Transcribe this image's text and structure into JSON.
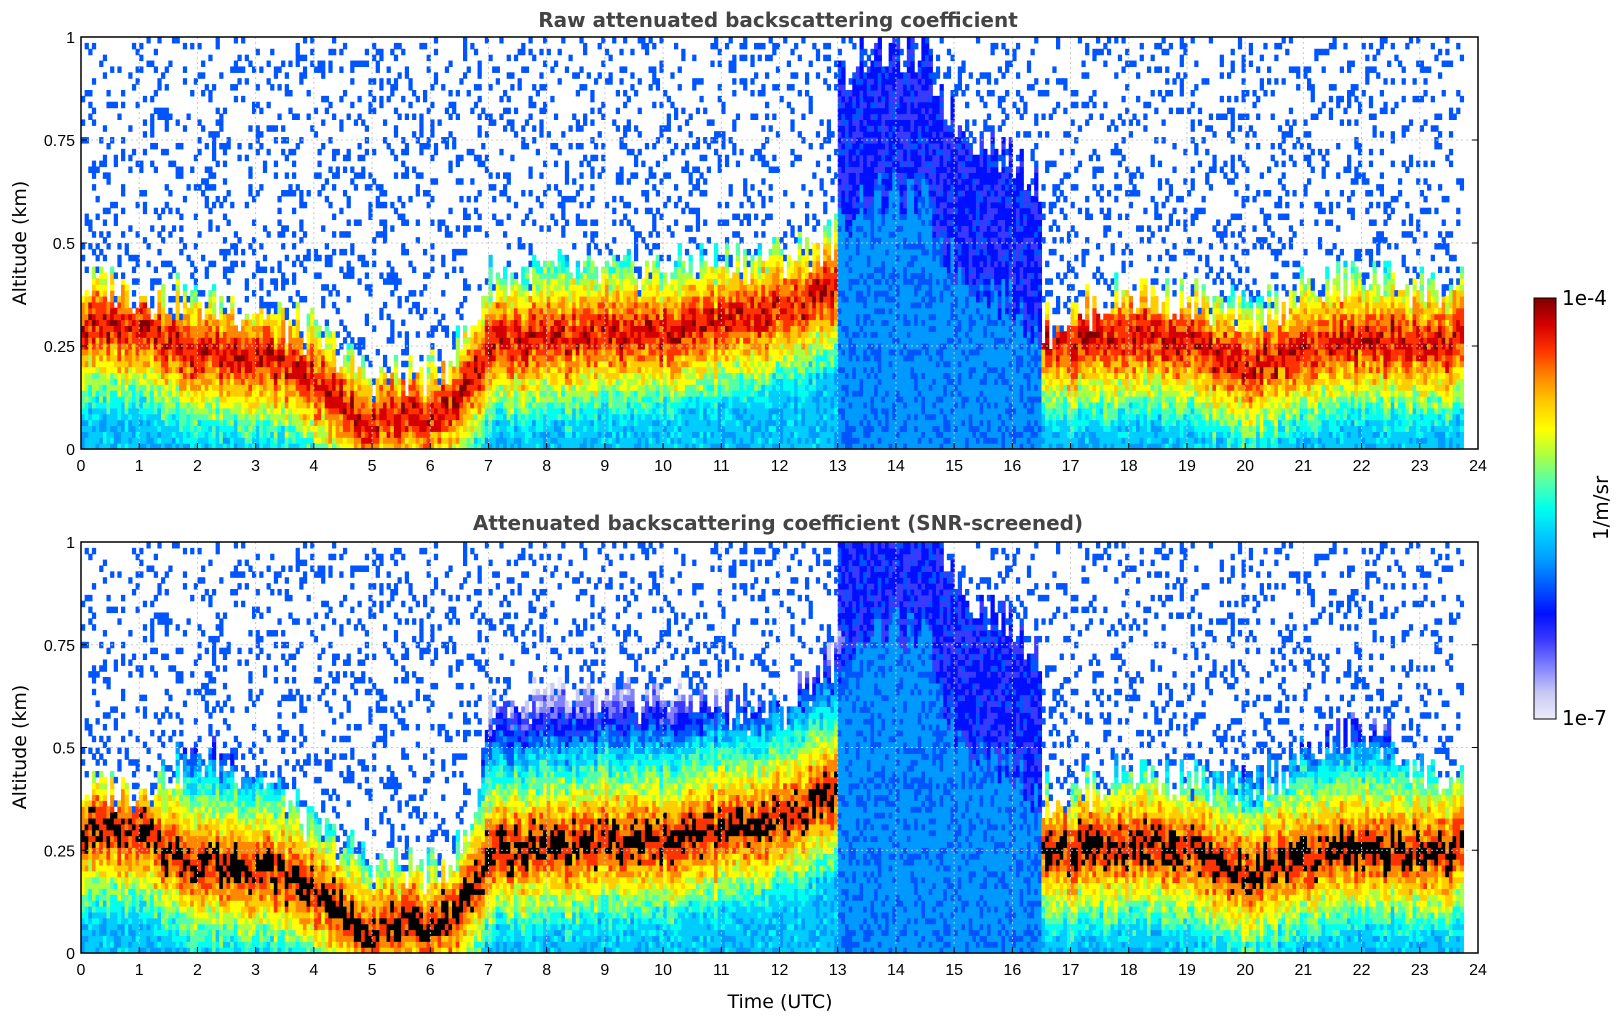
{
  "chart_data": [
    {
      "type": "heatmap",
      "title": "Raw attenuated backscattering coefficient",
      "xlabel": "",
      "ylabel": "Altitude (km)",
      "xlim": [
        0,
        24
      ],
      "ylim": [
        0,
        1
      ],
      "x_ticks": [
        "0",
        "1",
        "2",
        "3",
        "4",
        "5",
        "6",
        "7",
        "8",
        "9",
        "10",
        "11",
        "12",
        "13",
        "14",
        "15",
        "16",
        "17",
        "18",
        "19",
        "20",
        "21",
        "22",
        "23",
        "24"
      ],
      "y_ticks": [
        "0",
        "0.25",
        "0.5",
        "0.75",
        "1"
      ],
      "data_end_time": 23.75,
      "screened": false,
      "aerosol_layer_top_km": [
        [
          0.5,
          0.4
        ],
        [
          1,
          0.38
        ],
        [
          2,
          0.36
        ],
        [
          3,
          0.34
        ],
        [
          4,
          0.28
        ],
        [
          5,
          0.17
        ],
        [
          6,
          0.18
        ],
        [
          6.7,
          0.28
        ],
        [
          7,
          0.42
        ],
        [
          8,
          0.43
        ],
        [
          9,
          0.42
        ],
        [
          10,
          0.44
        ],
        [
          11,
          0.46
        ],
        [
          12,
          0.47
        ],
        [
          12.8,
          0.5
        ],
        [
          13.5,
          0.62
        ],
        [
          14.5,
          0.6
        ],
        [
          15,
          0.45
        ],
        [
          16,
          0.35
        ],
        [
          16.5,
          0.3
        ],
        [
          17,
          0.32
        ],
        [
          18,
          0.38
        ],
        [
          19,
          0.36
        ],
        [
          20,
          0.33
        ],
        [
          21,
          0.38
        ],
        [
          22,
          0.42
        ],
        [
          23,
          0.4
        ],
        [
          23.75,
          0.38
        ]
      ],
      "dense_layer_center_km": [
        [
          0.5,
          0.3
        ],
        [
          1,
          0.29
        ],
        [
          2,
          0.24
        ],
        [
          3,
          0.23
        ],
        [
          4,
          0.18
        ],
        [
          4.5,
          0.1
        ],
        [
          5,
          0.07
        ],
        [
          6,
          0.08
        ],
        [
          6.5,
          0.12
        ],
        [
          7,
          0.25
        ],
        [
          8,
          0.27
        ],
        [
          9,
          0.28
        ],
        [
          10,
          0.28
        ],
        [
          11,
          0.31
        ],
        [
          12,
          0.34
        ],
        [
          13,
          0.4
        ],
        [
          14,
          0.65
        ],
        [
          14.5,
          0.62
        ],
        [
          16.5,
          0.26
        ],
        [
          17,
          0.26
        ],
        [
          18,
          0.28
        ],
        [
          19,
          0.26
        ],
        [
          20,
          0.2
        ],
        [
          21,
          0.24
        ],
        [
          22,
          0.27
        ],
        [
          23,
          0.26
        ],
        [
          23.75,
          0.26
        ]
      ]
    },
    {
      "type": "heatmap",
      "title": "Attenuated backscattering coefficient (SNR-screened)",
      "xlabel": "Time (UTC)",
      "ylabel": "Altitude (km)",
      "xlim": [
        0,
        24
      ],
      "ylim": [
        0,
        1
      ],
      "x_ticks": [
        "0",
        "1",
        "2",
        "3",
        "4",
        "5",
        "6",
        "7",
        "8",
        "9",
        "10",
        "11",
        "12",
        "13",
        "14",
        "15",
        "16",
        "17",
        "18",
        "19",
        "20",
        "21",
        "22",
        "23",
        "24"
      ],
      "y_ticks": [
        "0",
        "0.25",
        "0.5",
        "0.75",
        "1"
      ],
      "data_end_time": 23.75,
      "screened": true,
      "aerosol_layer_top_km": [
        [
          0.5,
          0.4
        ],
        [
          1,
          0.4
        ],
        [
          2,
          0.48
        ],
        [
          3,
          0.45
        ],
        [
          4,
          0.3
        ],
        [
          5,
          0.22
        ],
        [
          6,
          0.2
        ],
        [
          6.7,
          0.28
        ],
        [
          7,
          0.6
        ],
        [
          8,
          0.62
        ],
        [
          9,
          0.6
        ],
        [
          10,
          0.63
        ],
        [
          11,
          0.6
        ],
        [
          12,
          0.58
        ],
        [
          12.8,
          0.7
        ],
        [
          13.5,
          0.8
        ],
        [
          14.5,
          0.78
        ],
        [
          15,
          0.55
        ],
        [
          16,
          0.45
        ],
        [
          16.5,
          0.38
        ],
        [
          17,
          0.38
        ],
        [
          18,
          0.45
        ],
        [
          19,
          0.42
        ],
        [
          20,
          0.4
        ],
        [
          21,
          0.48
        ],
        [
          22,
          0.55
        ],
        [
          23,
          0.45
        ],
        [
          23.75,
          0.4
        ]
      ],
      "dense_layer_center_km": [
        [
          0.5,
          0.3
        ],
        [
          1,
          0.29
        ],
        [
          2,
          0.22
        ],
        [
          3,
          0.21
        ],
        [
          4,
          0.16
        ],
        [
          4.5,
          0.09
        ],
        [
          5,
          0.06
        ],
        [
          6,
          0.07
        ],
        [
          6.5,
          0.1
        ],
        [
          7,
          0.24
        ],
        [
          8,
          0.26
        ],
        [
          9,
          0.27
        ],
        [
          10,
          0.27
        ],
        [
          11,
          0.3
        ],
        [
          12,
          0.33
        ],
        [
          13,
          0.4
        ],
        [
          14,
          0.65
        ],
        [
          14.5,
          0.62
        ],
        [
          16.5,
          0.25
        ],
        [
          17,
          0.25
        ],
        [
          18,
          0.27
        ],
        [
          19,
          0.25
        ],
        [
          20,
          0.19
        ],
        [
          21,
          0.23
        ],
        [
          22,
          0.26
        ],
        [
          23,
          0.25
        ],
        [
          23.75,
          0.25
        ]
      ]
    }
  ],
  "colorbar": {
    "label": "1/m/sr",
    "max_label": "1e-4",
    "min_label": "1e-7",
    "scale": "log",
    "colormap": [
      "#7f0000",
      "#d40000",
      "#ff3300",
      "#ff8800",
      "#ffcc00",
      "#ffff00",
      "#aaff44",
      "#55ffaa",
      "#00ffee",
      "#00ccff",
      "#0099ff",
      "#0055ff",
      "#0010ff",
      "#3a3aff",
      "#8080ff",
      "#c8c8f4",
      "#ececfa"
    ]
  }
}
